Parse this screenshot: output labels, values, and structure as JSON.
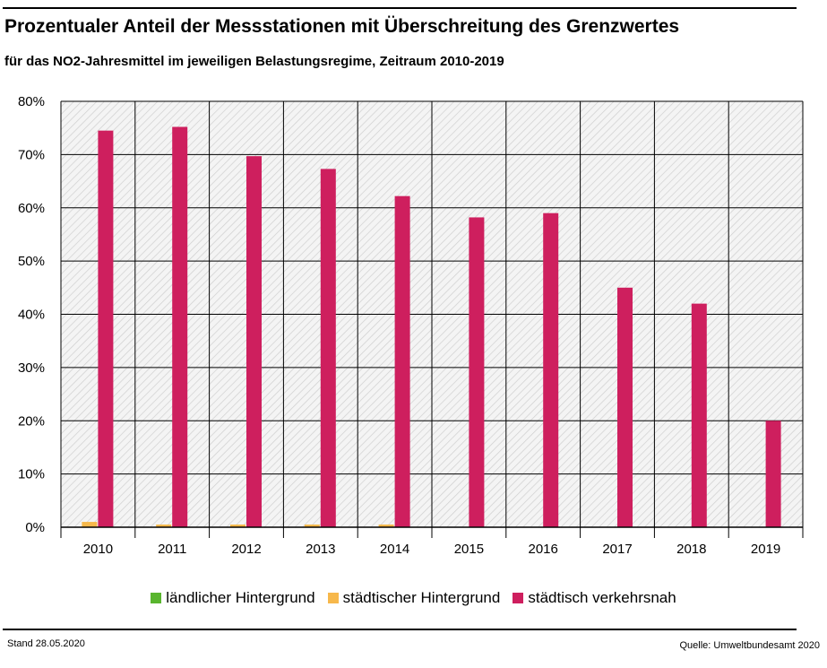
{
  "header": {
    "title": "Prozentualer Anteil der Messstationen mit Überschreitung des Grenzwertes",
    "subtitle": "für das NO2-Jahresmittel im jeweiligen Belastungsregime, Zeitraum 2010-2019"
  },
  "footer": {
    "date": "Stand 28.05.2020",
    "source": "Quelle: Umweltbundesamt 2020"
  },
  "chart_data": {
    "type": "bar",
    "categories": [
      "2010",
      "2011",
      "2012",
      "2013",
      "2014",
      "2015",
      "2016",
      "2017",
      "2018",
      "2019"
    ],
    "series": [
      {
        "name": "ländlicher Hintergrund",
        "color": "#59b52e",
        "values": [
          0,
          0,
          0,
          0,
          0,
          0,
          0,
          0,
          0,
          0
        ]
      },
      {
        "name": "städtischer Hintergrund",
        "color": "#f7b84b",
        "values": [
          1.0,
          0.5,
          0.5,
          0.5,
          0.5,
          0,
          0,
          0,
          0,
          0
        ]
      },
      {
        "name": "städtisch verkehrsnah",
        "color": "#ce1f5e",
        "values": [
          74.5,
          75.2,
          69.7,
          67.3,
          62.2,
          58.2,
          59.0,
          45.0,
          42.0,
          20.0
        ]
      }
    ],
    "ylim": [
      0,
      80
    ],
    "yticks": [
      "0%",
      "10%",
      "20%",
      "30%",
      "40%",
      "50%",
      "60%",
      "70%",
      "80%"
    ],
    "grid": true,
    "legend": "bottom"
  }
}
